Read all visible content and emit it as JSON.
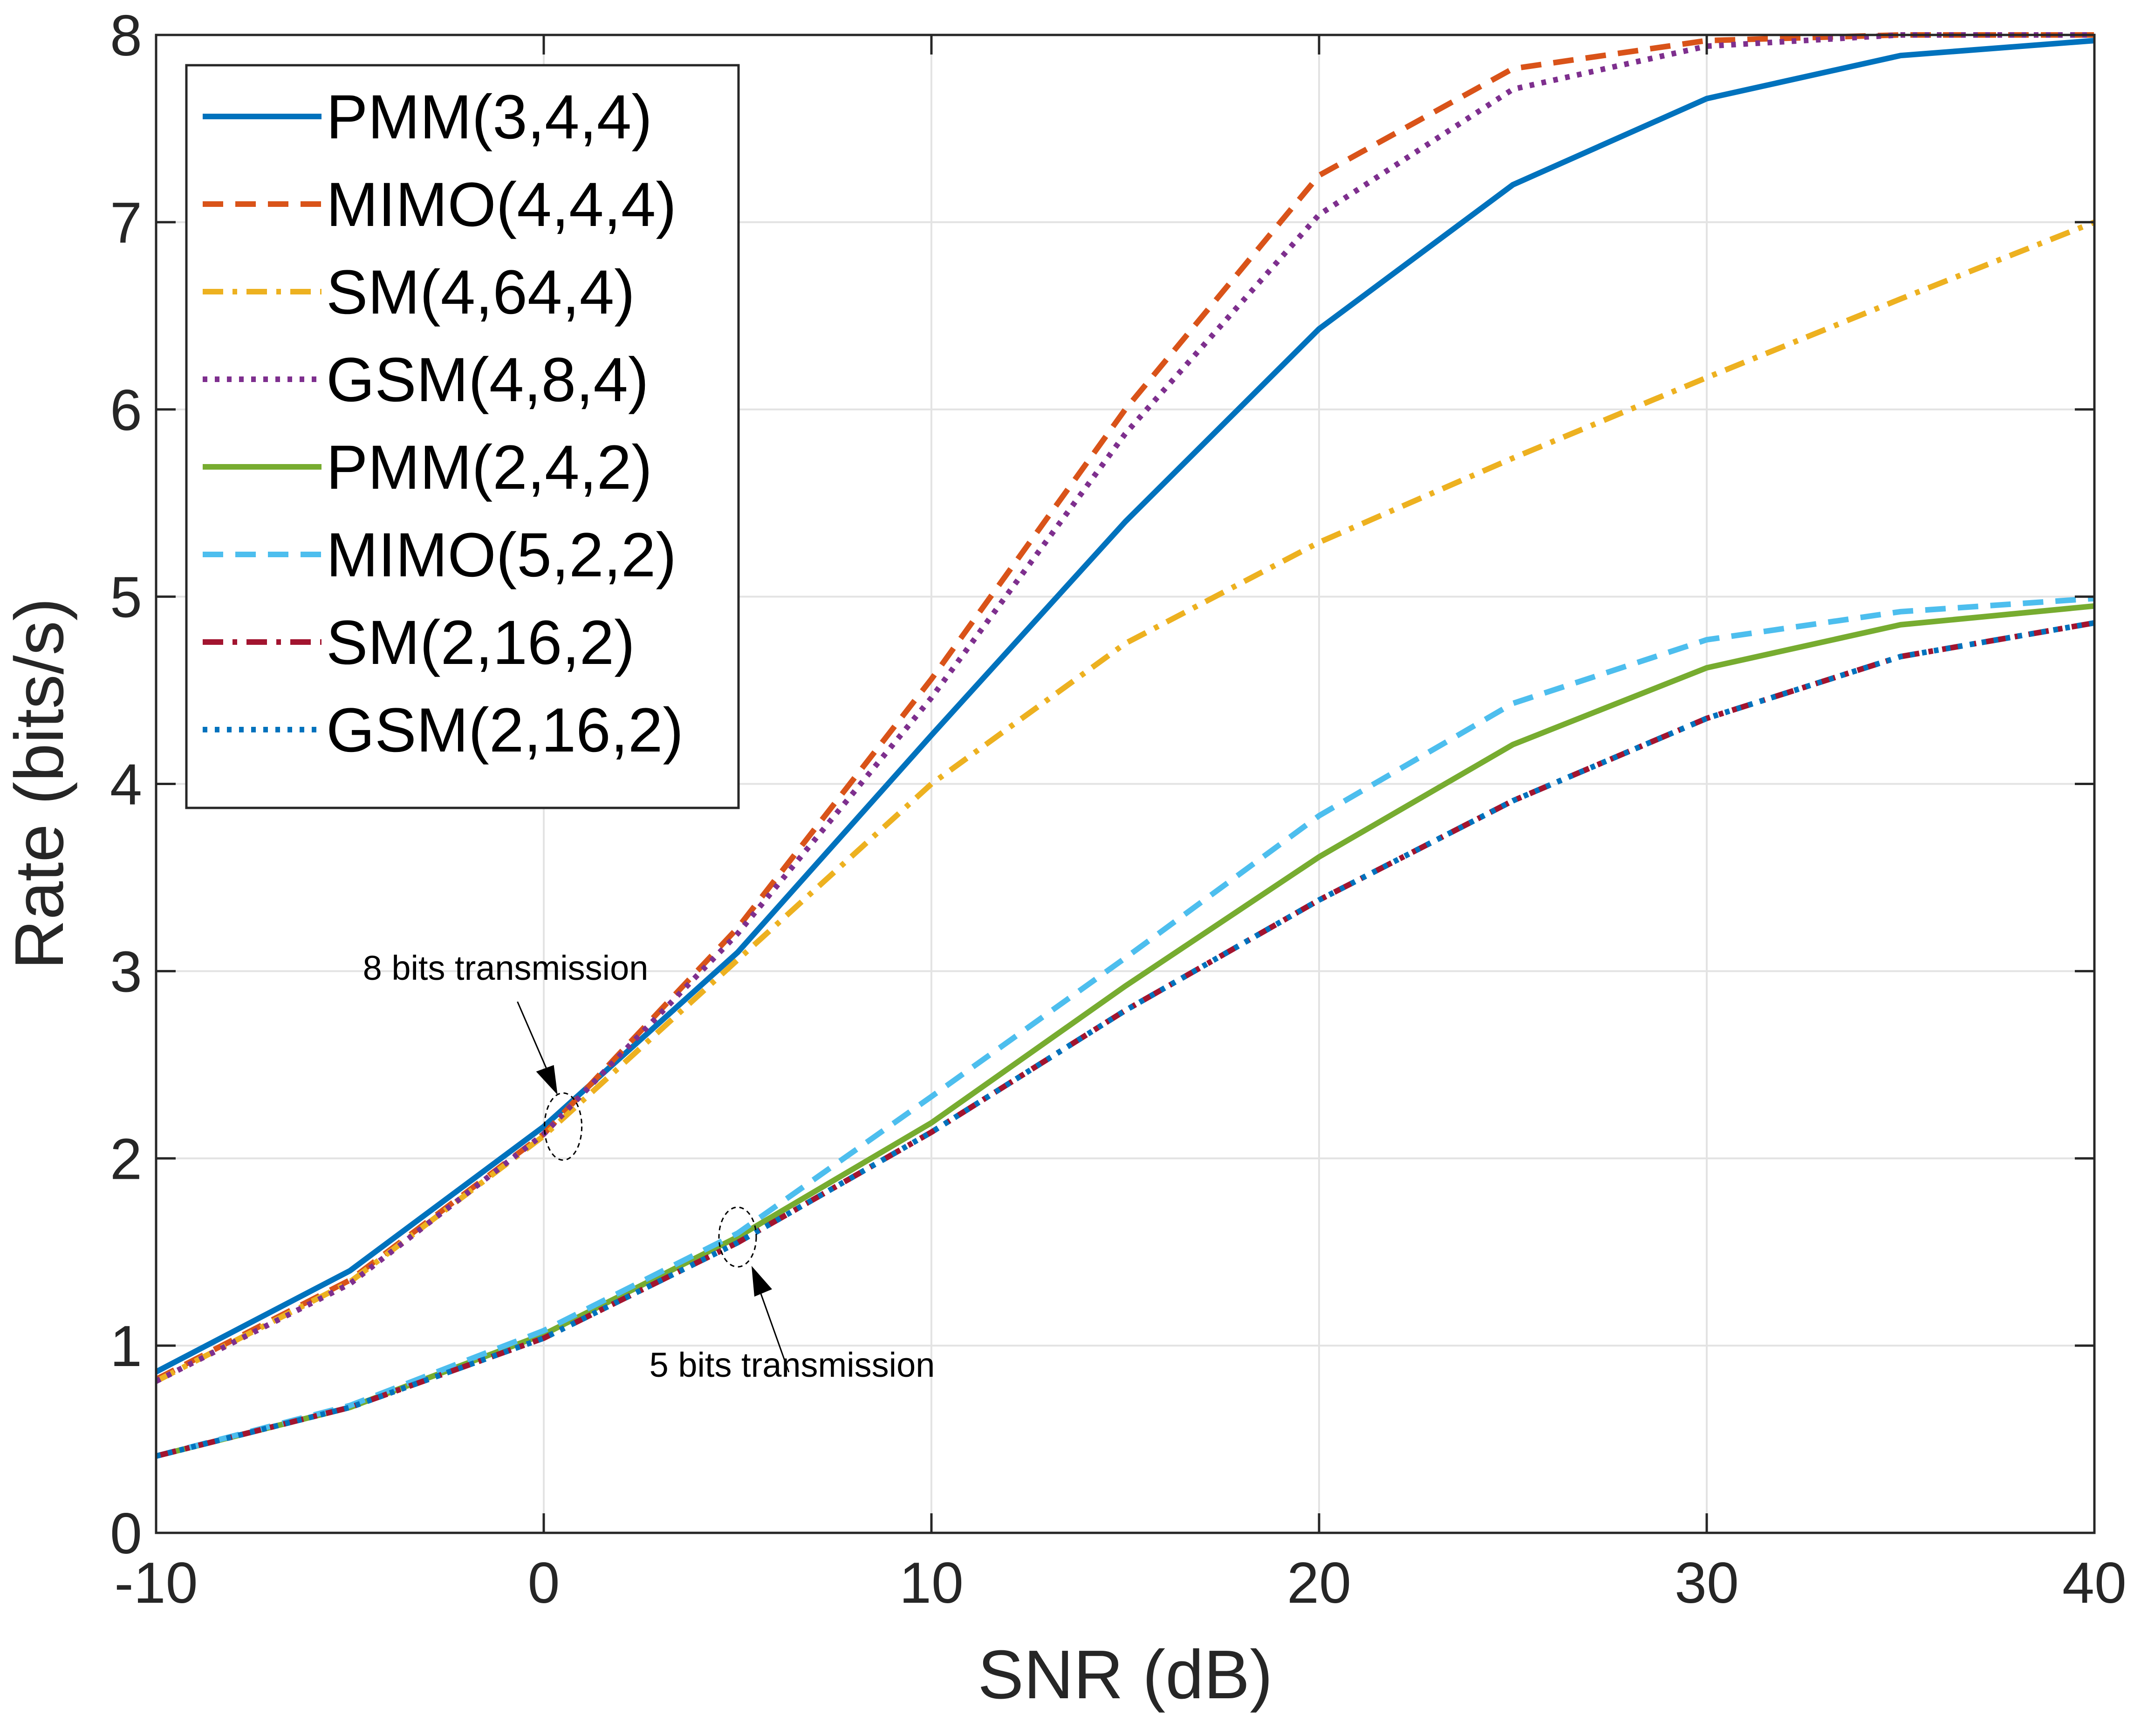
{
  "chart_data": {
    "type": "line",
    "title": "",
    "xlabel": "SNR (dB)",
    "ylabel": "Rate (bits/s)",
    "xlim": [
      -10,
      40
    ],
    "ylim": [
      0,
      8
    ],
    "xticks": [
      -10,
      0,
      10,
      20,
      30,
      40
    ],
    "yticks": [
      0,
      1,
      2,
      3,
      4,
      5,
      6,
      7,
      8
    ],
    "grid": true,
    "legend_position": "top-left",
    "x": [
      -10,
      -5,
      0,
      5,
      10,
      15,
      20,
      25,
      30,
      35,
      40
    ],
    "series": [
      {
        "name": "PMM(3,4,4)",
        "color": "#0072BD",
        "style": "solid",
        "values": [
          0.86,
          1.4,
          2.17,
          3.1,
          4.26,
          5.4,
          6.43,
          7.2,
          7.66,
          7.89,
          7.97
        ]
      },
      {
        "name": "MIMO(4,4,4)",
        "color": "#D95319",
        "style": "dashed",
        "values": [
          0.82,
          1.35,
          2.13,
          3.23,
          4.56,
          6.0,
          7.25,
          7.82,
          7.97,
          8.0,
          8.0
        ]
      },
      {
        "name": "SM(4,64,4)",
        "color": "#EDB120",
        "style": "dashdot",
        "values": [
          0.81,
          1.34,
          2.12,
          3.06,
          4.0,
          4.75,
          5.29,
          5.74,
          6.17,
          6.59,
          7.0
        ]
      },
      {
        "name": "GSM(4,8,4)",
        "color": "#7E2F8E",
        "style": "dotted",
        "values": [
          0.81,
          1.33,
          2.13,
          3.2,
          4.46,
          5.87,
          7.04,
          7.71,
          7.94,
          8.0,
          8.0
        ]
      },
      {
        "name": "PMM(2,4,2)",
        "color": "#77AC30",
        "style": "solid",
        "values": [
          0.41,
          0.67,
          1.06,
          1.58,
          2.19,
          2.92,
          3.61,
          4.21,
          4.62,
          4.85,
          4.95
        ]
      },
      {
        "name": "MIMO(5,2,2)",
        "color": "#4DBEEE",
        "style": "dashed",
        "values": [
          0.41,
          0.68,
          1.08,
          1.6,
          2.33,
          3.07,
          3.83,
          4.43,
          4.77,
          4.92,
          4.99
        ]
      },
      {
        "name": "SM(2,16,2)",
        "color": "#A2142F",
        "style": "dashdot",
        "values": [
          0.41,
          0.67,
          1.04,
          1.55,
          2.14,
          2.79,
          3.38,
          3.91,
          4.35,
          4.68,
          4.86
        ]
      },
      {
        "name": "GSM(2,16,2)",
        "color": "#0072BD",
        "style": "dotted",
        "values": [
          0.41,
          0.67,
          1.04,
          1.55,
          2.14,
          2.79,
          3.38,
          3.91,
          4.35,
          4.68,
          4.86
        ]
      }
    ],
    "annotations": [
      {
        "text": "8 bits transmission",
        "x": 0.5,
        "y": 2.17
      },
      {
        "text": "5 bits transmission",
        "x": 5.0,
        "y": 1.58
      }
    ]
  }
}
